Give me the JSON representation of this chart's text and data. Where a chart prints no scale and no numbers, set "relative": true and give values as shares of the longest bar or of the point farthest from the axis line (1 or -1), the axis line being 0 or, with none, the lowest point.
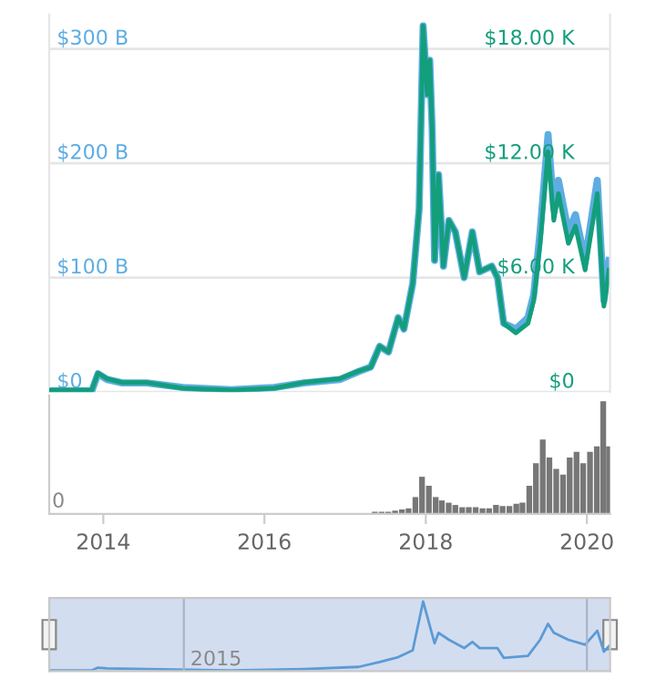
{
  "chart_data": [
    {
      "type": "line",
      "x": [
        "2013-05-01",
        "2013-11-10",
        "2013-12-08",
        "2014-01-18",
        "2014-03-28",
        "2014-07-16",
        "2014-12-28",
        "2015-08-04",
        "2016-02-14",
        "2016-06-28",
        "2016-12-08",
        "2017-03-03",
        "2017-04-27",
        "2017-06-06",
        "2017-07-16",
        "2017-08-29",
        "2017-09-24",
        "2017-11-03",
        "2017-12-02",
        "2017-12-20",
        "2018-01-08",
        "2018-01-19",
        "2018-01-30",
        "2018-02-10",
        "2018-02-28",
        "2018-03-22",
        "2018-04-16",
        "2018-05-15",
        "2018-06-24",
        "2018-07-31",
        "2018-09-02",
        "2018-10-27",
        "2018-11-22",
        "2018-12-20",
        "2019-02-13",
        "2019-04-09",
        "2019-05-05",
        "2019-06-03",
        "2019-07-09",
        "2019-08-04",
        "2019-08-25",
        "2019-10-09",
        "2019-11-10",
        "2019-12-24",
        "2020-02-17",
        "2020-03-18",
        "2020-04-10"
      ],
      "series": [
        {
          "color": "#5dade2",
          "axis": "y",
          "values": [
            1,
            1,
            16,
            11,
            8,
            8,
            4,
            2,
            4,
            8,
            11,
            18,
            22,
            40,
            35,
            65,
            55,
            95,
            160,
            320,
            260,
            290,
            230,
            115,
            190,
            110,
            150,
            140,
            100,
            140,
            105,
            110,
            100,
            60,
            55,
            65,
            85,
            140,
            225,
            160,
            185,
            140,
            155,
            115,
            185,
            80,
            115
          ]
        },
        {
          "color": "#139e7c",
          "axis": "y2",
          "values": [
            0.1,
            0.1,
            1.0,
            0.7,
            0.5,
            0.5,
            0.2,
            0.1,
            0.2,
            0.5,
            0.7,
            1.1,
            1.3,
            2.4,
            2.1,
            3.9,
            3.3,
            5.7,
            9.6,
            19.2,
            15.6,
            17.4,
            13.8,
            6.9,
            11.4,
            6.6,
            9.0,
            8.4,
            6.0,
            8.4,
            6.3,
            6.6,
            6.0,
            3.6,
            3.1,
            3.6,
            4.8,
            7.8,
            12.6,
            9.0,
            10.4,
            7.8,
            8.7,
            6.4,
            10.4,
            4.5,
            6.4
          ]
        }
      ],
      "xlim": [
        "2013-05-01",
        "2020-04-15"
      ],
      "ylim": [
        0,
        330
      ],
      "yticks": [
        {
          "value": 0,
          "label": "$0"
        },
        {
          "value": 100,
          "label": "$100 B"
        },
        {
          "value": 200,
          "label": "$200 B"
        },
        {
          "value": 300,
          "label": "$300 B"
        }
      ],
      "y2lim": [
        0,
        19.8
      ],
      "y2ticks": [
        {
          "value": 0,
          "label": "$0"
        },
        {
          "value": 6,
          "label": "$6.00 K"
        },
        {
          "value": 12,
          "label": "$12.00 K"
        },
        {
          "value": 18,
          "label": "$18.00 K"
        }
      ],
      "grid": "y",
      "legend": false,
      "tick_labels": "y"
    },
    {
      "type": "bar",
      "relative": true,
      "color": "#777777",
      "x": [
        "2017-05-15",
        "2017-06-15",
        "2017-07-15",
        "2017-08-15",
        "2017-09-15",
        "2017-10-15",
        "2017-11-15",
        "2017-12-15",
        "2018-01-15",
        "2018-02-15",
        "2018-03-15",
        "2018-04-15",
        "2018-05-15",
        "2018-06-15",
        "2018-07-15",
        "2018-08-15",
        "2018-09-15",
        "2018-10-15",
        "2018-11-15",
        "2018-12-15",
        "2019-01-15",
        "2019-02-15",
        "2019-03-15",
        "2019-04-15",
        "2019-05-15",
        "2019-06-15",
        "2019-07-15",
        "2019-08-15",
        "2019-09-15",
        "2019-10-15",
        "2019-11-15",
        "2019-12-15",
        "2020-01-15",
        "2020-02-15",
        "2020-03-15",
        "2020-04-10"
      ],
      "values": [
        0.02,
        0.02,
        0.02,
        0.03,
        0.04,
        0.05,
        0.15,
        0.33,
        0.25,
        0.15,
        0.12,
        0.1,
        0.08,
        0.06,
        0.06,
        0.06,
        0.05,
        0.05,
        0.08,
        0.07,
        0.07,
        0.09,
        0.1,
        0.25,
        0.45,
        0.66,
        0.5,
        0.4,
        0.35,
        0.5,
        0.55,
        0.45,
        0.55,
        0.6,
        1.0,
        0.6
      ],
      "xlim": [
        "2013-05-01",
        "2020-04-15"
      ],
      "xticks": [
        {
          "value": "2014-01-01",
          "label": "2014"
        },
        {
          "value": "2016-01-01",
          "label": "2016"
        },
        {
          "value": "2018-01-01",
          "label": "2018"
        },
        {
          "value": "2020-01-01",
          "label": "2020"
        }
      ],
      "annotations": [
        "0"
      ],
      "tick_labels": "x"
    },
    {
      "type": "line",
      "relative": true,
      "color": "#5b9bd5",
      "x": [
        "2013-05-01",
        "2013-11-10",
        "2013-12-08",
        "2014-01-18",
        "2014-07-16",
        "2015-08-04",
        "2016-06-28",
        "2017-03-03",
        "2017-06-06",
        "2017-08-29",
        "2017-11-03",
        "2017-12-20",
        "2018-02-10",
        "2018-02-28",
        "2018-04-16",
        "2018-06-24",
        "2018-07-31",
        "2018-09-02",
        "2018-11-22",
        "2018-12-20",
        "2019-04-09",
        "2019-06-03",
        "2019-07-09",
        "2019-08-04",
        "2019-10-09",
        "2019-12-24",
        "2020-02-17",
        "2020-03-18",
        "2020-04-10"
      ],
      "values": [
        0.01,
        0.01,
        0.05,
        0.04,
        0.03,
        0.01,
        0.03,
        0.06,
        0.13,
        0.2,
        0.3,
        1.0,
        0.4,
        0.55,
        0.45,
        0.33,
        0.42,
        0.33,
        0.33,
        0.19,
        0.22,
        0.45,
        0.68,
        0.55,
        0.45,
        0.38,
        0.58,
        0.28,
        0.36
      ],
      "xlim": [
        "2013-05-01",
        "2020-04-15"
      ],
      "ref_lines": [
        {
          "axis": "x",
          "value": "2015-01-01",
          "label": "2015"
        },
        {
          "axis": "x",
          "value": "2020-01-01"
        }
      ]
    }
  ]
}
